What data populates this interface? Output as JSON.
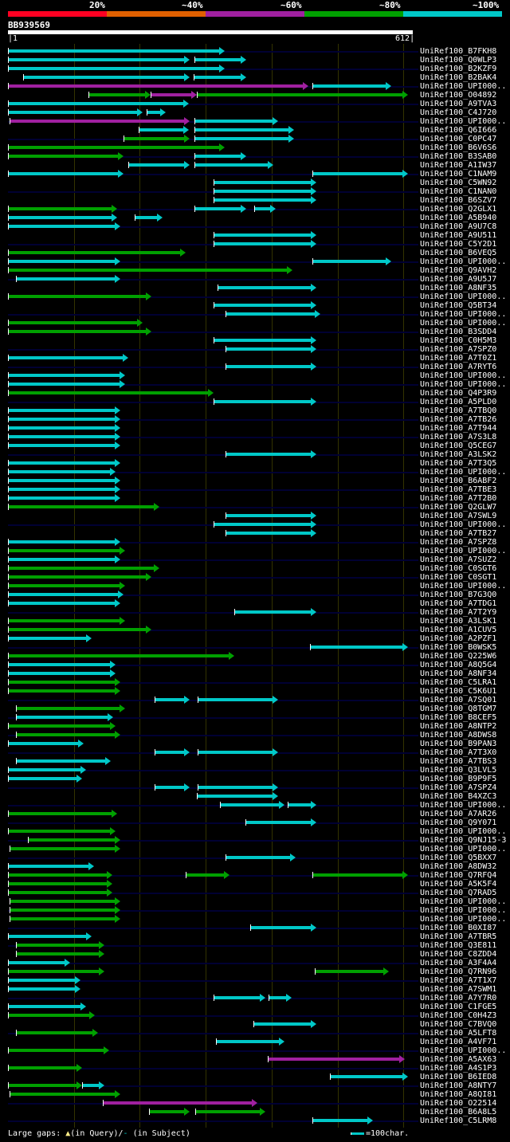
{
  "colors": {
    "c": "#00c8c8",
    "g": "#00a000",
    "p": "#a020a0",
    "red": "#ff0022",
    "orange": "#e06000",
    "grid": "#333300"
  },
  "header": {
    "pct_labels": [
      "20%",
      "~40%",
      "~60%",
      "~80%",
      "~100%"
    ],
    "query_id": "BB939569",
    "scale_start": "1",
    "scale_end": "612"
  },
  "query_length": 612,
  "hits": [
    {
      "label": "UniRef100_B7FKH8",
      "segs": [
        [
          0,
          329,
          "c"
        ]
      ]
    },
    {
      "label": "UniRef100_Q0WLP3",
      "segs": [
        [
          0,
          276,
          "c"
        ],
        [
          283,
          362,
          "c"
        ]
      ]
    },
    {
      "label": "UniRef100_B2KZF9",
      "segs": [
        [
          0,
          329,
          "c"
        ]
      ]
    },
    {
      "label": "UniRef100_B2BAK4",
      "segs": [
        [
          23,
          276,
          "c"
        ],
        [
          282,
          362,
          "c"
        ]
      ]
    },
    {
      "label": "UniRef100_UPI000..",
      "segs": [
        [
          0,
          456,
          "p"
        ],
        [
          462,
          582,
          "c"
        ]
      ]
    },
    {
      "label": "UniRef100_O04892",
      "segs": [
        [
          122,
          216,
          "g"
        ],
        [
          216,
          286,
          "p"
        ],
        [
          286,
          607,
          "g"
        ]
      ]
    },
    {
      "label": "UniRef100_A9TVA3",
      "segs": [
        [
          0,
          274,
          "c"
        ]
      ]
    },
    {
      "label": "UniRef100_C4J720",
      "segs": [
        [
          0,
          204,
          "c"
        ],
        [
          210,
          240,
          "c"
        ]
      ]
    },
    {
      "label": "UniRef100_UPI000..",
      "segs": [
        [
          2,
          276,
          "p"
        ],
        [
          283,
          410,
          "c"
        ]
      ]
    },
    {
      "label": "UniRef100_Q6I666",
      "segs": [
        [
          198,
          274,
          "c"
        ],
        [
          283,
          434,
          "c"
        ]
      ]
    },
    {
      "label": "UniRef100_C0PC47",
      "segs": [
        [
          175,
          276,
          "g"
        ],
        [
          283,
          434,
          "c"
        ]
      ]
    },
    {
      "label": "UniRef100_B6V6S6",
      "segs": [
        [
          0,
          329,
          "g"
        ]
      ]
    },
    {
      "label": "UniRef100_B3SAB0",
      "segs": [
        [
          0,
          175,
          "g"
        ],
        [
          283,
          362,
          "c"
        ]
      ]
    },
    {
      "label": "UniRef100_A1IW37",
      "segs": [
        [
          182,
          276,
          "c"
        ],
        [
          283,
          403,
          "c"
        ]
      ]
    },
    {
      "label": "UniRef100_C1NAM9",
      "segs": [
        [
          0,
          175,
          "c"
        ],
        [
          462,
          607,
          "c"
        ]
      ]
    },
    {
      "label": "UniRef100_C5WN92",
      "segs": [
        [
          312,
          468,
          "c"
        ]
      ]
    },
    {
      "label": "UniRef100_C1NAN0",
      "segs": [
        [
          312,
          468,
          "c"
        ]
      ]
    },
    {
      "label": "UniRef100_B6SZV7",
      "segs": [
        [
          312,
          468,
          "c"
        ]
      ]
    },
    {
      "label": "UniRef100_Q2GLX1",
      "segs": [
        [
          0,
          166,
          "g"
        ],
        [
          283,
          362,
          "c"
        ],
        [
          374,
          406,
          "c"
        ]
      ]
    },
    {
      "label": "UniRef100_A5B940",
      "segs": [
        [
          0,
          166,
          "c"
        ],
        [
          192,
          235,
          "c"
        ]
      ]
    },
    {
      "label": "UniRef100_A9U7C8",
      "segs": [
        [
          0,
          170,
          "c"
        ]
      ]
    },
    {
      "label": "UniRef100_A9U511",
      "segs": [
        [
          312,
          468,
          "c"
        ]
      ]
    },
    {
      "label": "UniRef100_C5Y2D1",
      "segs": [
        [
          312,
          468,
          "c"
        ]
      ]
    },
    {
      "label": "UniRef100_B6VEQ5",
      "segs": [
        [
          0,
          270,
          "g"
        ]
      ]
    },
    {
      "label": "UniRef100_UPI000..",
      "segs": [
        [
          0,
          170,
          "c"
        ],
        [
          462,
          582,
          "c"
        ]
      ]
    },
    {
      "label": "UniRef100_Q9AVH2",
      "segs": [
        [
          0,
          432,
          "g"
        ]
      ]
    },
    {
      "label": "UniRef100_A9U5J7",
      "segs": [
        [
          12,
          170,
          "c"
        ]
      ]
    },
    {
      "label": "UniRef100_A8NF35",
      "segs": [
        [
          318,
          468,
          "c"
        ]
      ]
    },
    {
      "label": "UniRef100_UPI000..",
      "segs": [
        [
          0,
          218,
          "g"
        ]
      ]
    },
    {
      "label": "UniRef100_Q5BT34",
      "segs": [
        [
          312,
          468,
          "c"
        ]
      ]
    },
    {
      "label": "UniRef100_UPI000..",
      "segs": [
        [
          330,
          474,
          "c"
        ]
      ]
    },
    {
      "label": "UniRef100_UPI000..",
      "segs": [
        [
          0,
          204,
          "g"
        ]
      ]
    },
    {
      "label": "UniRef100_B3SDD4",
      "segs": [
        [
          0,
          218,
          "g"
        ]
      ]
    },
    {
      "label": "UniRef100_C0H5M3",
      "segs": [
        [
          312,
          468,
          "c"
        ]
      ]
    },
    {
      "label": "UniRef100_A7SPZ0",
      "segs": [
        [
          330,
          468,
          "c"
        ]
      ]
    },
    {
      "label": "UniRef100_A7T0Z1",
      "segs": [
        [
          0,
          182,
          "c"
        ]
      ]
    },
    {
      "label": "UniRef100_A7RYT6",
      "segs": [
        [
          330,
          468,
          "c"
        ]
      ]
    },
    {
      "label": "UniRef100_UPI000..",
      "segs": [
        [
          0,
          178,
          "c"
        ]
      ]
    },
    {
      "label": "UniRef100_UPI000..",
      "segs": [
        [
          0,
          178,
          "c"
        ]
      ]
    },
    {
      "label": "UniRef100_Q4P3R9",
      "segs": [
        [
          0,
          312,
          "g"
        ]
      ]
    },
    {
      "label": "UniRef100_A5PLD0",
      "segs": [
        [
          312,
          468,
          "c"
        ]
      ]
    },
    {
      "label": "UniRef100_A7TBQ0",
      "segs": [
        [
          0,
          170,
          "c"
        ]
      ]
    },
    {
      "label": "UniRef100_A7TB26",
      "segs": [
        [
          0,
          170,
          "c"
        ]
      ]
    },
    {
      "label": "UniRef100_A7T944",
      "segs": [
        [
          0,
          170,
          "c"
        ]
      ]
    },
    {
      "label": "UniRef100_A7S3L8",
      "segs": [
        [
          0,
          170,
          "c"
        ]
      ]
    },
    {
      "label": "UniRef100_Q5CEG7",
      "segs": [
        [
          0,
          170,
          "c"
        ]
      ]
    },
    {
      "label": "UniRef100_A3LSK2",
      "segs": [
        [
          330,
          468,
          "c"
        ]
      ]
    },
    {
      "label": "UniRef100_A7T3Q5",
      "segs": [
        [
          0,
          170,
          "c"
        ]
      ]
    },
    {
      "label": "UniRef100_UPI000..",
      "segs": [
        [
          0,
          163,
          "c"
        ]
      ]
    },
    {
      "label": "UniRef100_B6ABF2",
      "segs": [
        [
          0,
          170,
          "c"
        ]
      ]
    },
    {
      "label": "UniRef100_A7TBE3",
      "segs": [
        [
          0,
          170,
          "c"
        ]
      ]
    },
    {
      "label": "UniRef100_A7T2B0",
      "segs": [
        [
          0,
          170,
          "c"
        ]
      ]
    },
    {
      "label": "UniRef100_Q2GLW7",
      "segs": [
        [
          0,
          230,
          "g"
        ]
      ]
    },
    {
      "label": "UniRef100_A7SWL9",
      "segs": [
        [
          330,
          468,
          "c"
        ]
      ]
    },
    {
      "label": "UniRef100_UPI000..",
      "segs": [
        [
          312,
          468,
          "c"
        ]
      ]
    },
    {
      "label": "UniRef100_A7TB27",
      "segs": [
        [
          330,
          468,
          "c"
        ]
      ]
    },
    {
      "label": "UniRef100_A7SPZ8",
      "segs": [
        [
          0,
          170,
          "c"
        ]
      ]
    },
    {
      "label": "UniRef100_UPI000..",
      "segs": [
        [
          0,
          178,
          "g"
        ]
      ]
    },
    {
      "label": "UniRef100_A7SUZ2",
      "segs": [
        [
          0,
          170,
          "c"
        ]
      ]
    },
    {
      "label": "UniRef100_C0SGT6",
      "segs": [
        [
          0,
          230,
          "g"
        ]
      ]
    },
    {
      "label": "UniRef100_C0SGT1",
      "segs": [
        [
          0,
          218,
          "g"
        ]
      ]
    },
    {
      "label": "UniRef100_UPI000..",
      "segs": [
        [
          0,
          178,
          "g"
        ]
      ]
    },
    {
      "label": "UniRef100_B7G3Q0",
      "segs": [
        [
          0,
          175,
          "c"
        ]
      ]
    },
    {
      "label": "UniRef100_A7TDG1",
      "segs": [
        [
          0,
          170,
          "c"
        ]
      ]
    },
    {
      "label": "UniRef100_A7T2Y9",
      "segs": [
        [
          344,
          468,
          "c"
        ]
      ]
    },
    {
      "label": "UniRef100_A3LSK1",
      "segs": [
        [
          0,
          178,
          "g"
        ]
      ]
    },
    {
      "label": "UniRef100_A1CUV5",
      "segs": [
        [
          0,
          218,
          "g"
        ]
      ]
    },
    {
      "label": "UniRef100_A2PZF1",
      "segs": [
        [
          0,
          127,
          "c"
        ]
      ]
    },
    {
      "label": "UniRef100_B0WSK5",
      "segs": [
        [
          458,
          607,
          "c"
        ]
      ]
    },
    {
      "label": "UniRef100_Q225W6",
      "segs": [
        [
          0,
          344,
          "g"
        ]
      ]
    },
    {
      "label": "UniRef100_A8Q5G4",
      "segs": [
        [
          0,
          163,
          "c"
        ]
      ]
    },
    {
      "label": "UniRef100_A8NF34",
      "segs": [
        [
          0,
          163,
          "c"
        ]
      ]
    },
    {
      "label": "UniRef100_C5LRA1",
      "segs": [
        [
          0,
          170,
          "g"
        ]
      ]
    },
    {
      "label": "UniRef100_C5K6U1",
      "segs": [
        [
          0,
          170,
          "g"
        ]
      ]
    },
    {
      "label": "UniRef100_A7SQ01",
      "segs": [
        [
          223,
          276,
          "c"
        ],
        [
          288,
          410,
          "c"
        ]
      ]
    },
    {
      "label": "UniRef100_Q8TGM7",
      "segs": [
        [
          12,
          178,
          "g"
        ]
      ]
    },
    {
      "label": "UniRef100_B8CEF5",
      "segs": [
        [
          12,
          160,
          "c"
        ]
      ]
    },
    {
      "label": "UniRef100_A8NTP2",
      "segs": [
        [
          0,
          163,
          "g"
        ]
      ]
    },
    {
      "label": "UniRef100_A8DWS8",
      "segs": [
        [
          12,
          170,
          "g"
        ]
      ]
    },
    {
      "label": "UniRef100_B9PAN3",
      "segs": [
        [
          0,
          115,
          "c"
        ]
      ]
    },
    {
      "label": "UniRef100_A7T3X0",
      "segs": [
        [
          223,
          276,
          "c"
        ],
        [
          288,
          410,
          "c"
        ]
      ]
    },
    {
      "label": "UniRef100_A7TBS3",
      "segs": [
        [
          12,
          156,
          "c"
        ]
      ]
    },
    {
      "label": "UniRef100_Q3LVL5",
      "segs": [
        [
          0,
          118,
          "c"
        ]
      ]
    },
    {
      "label": "UniRef100_B9P9F5",
      "segs": [
        [
          0,
          113,
          "c"
        ]
      ]
    },
    {
      "label": "UniRef100_A7SPZ4",
      "segs": [
        [
          223,
          276,
          "c"
        ],
        [
          288,
          410,
          "c"
        ]
      ]
    },
    {
      "label": "UniRef100_B4XZC3",
      "segs": [
        [
          286,
          410,
          "c"
        ]
      ]
    },
    {
      "label": "UniRef100_UPI000..",
      "segs": [
        [
          322,
          420,
          "c"
        ],
        [
          425,
          468,
          "c"
        ]
      ]
    },
    {
      "label": "UniRef100_A7AR26",
      "segs": [
        [
          0,
          166,
          "g"
        ]
      ]
    },
    {
      "label": "UniRef100_Q9Y071",
      "segs": [
        [
          360,
          468,
          "c"
        ]
      ]
    },
    {
      "label": "UniRef100_UPI000..",
      "segs": [
        [
          0,
          163,
          "g"
        ]
      ]
    },
    {
      "label": "UniRef100_Q9NJ15-3",
      "segs": [
        [
          30,
          170,
          "g"
        ]
      ]
    },
    {
      "label": "UniRef100_UPI000..",
      "segs": [
        [
          2,
          170,
          "g"
        ]
      ]
    },
    {
      "label": "UniRef100_Q5BXX7",
      "segs": [
        [
          330,
          437,
          "c"
        ]
      ]
    },
    {
      "label": "UniRef100_A8DW32",
      "segs": [
        [
          0,
          130,
          "c"
        ]
      ]
    },
    {
      "label": "UniRef100_Q7RFQ4",
      "segs": [
        [
          0,
          158,
          "g"
        ],
        [
          270,
          336,
          "g"
        ],
        [
          462,
          607,
          "g"
        ]
      ]
    },
    {
      "label": "UniRef100_A5K5F4",
      "segs": [
        [
          0,
          158,
          "g"
        ]
      ]
    },
    {
      "label": "UniRef100_Q7RAD5",
      "segs": [
        [
          0,
          158,
          "g"
        ]
      ]
    },
    {
      "label": "UniRef100_UPI000..",
      "segs": [
        [
          2,
          170,
          "g"
        ]
      ]
    },
    {
      "label": "UniRef100_UPI000..",
      "segs": [
        [
          2,
          170,
          "g"
        ]
      ]
    },
    {
      "label": "UniRef100_UPI000..",
      "segs": [
        [
          2,
          170,
          "g"
        ]
      ]
    },
    {
      "label": "UniRef100_B0XI87",
      "segs": [
        [
          368,
          468,
          "c"
        ]
      ]
    },
    {
      "label": "UniRef100_A7TBR5",
      "segs": [
        [
          0,
          127,
          "c"
        ]
      ]
    },
    {
      "label": "UniRef100_Q3E811",
      "segs": [
        [
          12,
          146,
          "g"
        ]
      ]
    },
    {
      "label": "UniRef100_C8ZDD4",
      "segs": [
        [
          12,
          146,
          "g"
        ]
      ]
    },
    {
      "label": "UniRef100_A3F4A4",
      "segs": [
        [
          0,
          94,
          "c"
        ]
      ]
    },
    {
      "label": "UniRef100_Q7RN96",
      "segs": [
        [
          0,
          146,
          "g"
        ],
        [
          466,
          578,
          "g"
        ]
      ]
    },
    {
      "label": "UniRef100_A7T1X7",
      "segs": [
        [
          0,
          110,
          "c"
        ]
      ]
    },
    {
      "label": "UniRef100_A7SWM1",
      "segs": [
        [
          0,
          110,
          "c"
        ]
      ]
    },
    {
      "label": "UniRef100_A7Y7R0",
      "segs": [
        [
          312,
          391,
          "c"
        ],
        [
          396,
          430,
          "c"
        ]
      ]
    },
    {
      "label": "UniRef100_C1FGE5",
      "segs": [
        [
          0,
          118,
          "c"
        ]
      ]
    },
    {
      "label": "UniRef100_C0H4Z3",
      "segs": [
        [
          0,
          132,
          "g"
        ]
      ]
    },
    {
      "label": "UniRef100_C7BVQ0",
      "segs": [
        [
          372,
          468,
          "c"
        ]
      ]
    },
    {
      "label": "UniRef100_A5LFT8",
      "segs": [
        [
          12,
          137,
          "g"
        ]
      ]
    },
    {
      "label": "UniRef100_A4VF71",
      "segs": [
        [
          316,
          420,
          "c"
        ]
      ]
    },
    {
      "label": "UniRef100_UPI000..",
      "segs": [
        [
          0,
          154,
          "g"
        ]
      ]
    },
    {
      "label": "UniRef100_A5AX63",
      "segs": [
        [
          394,
          602,
          "p"
        ]
      ]
    },
    {
      "label": "UniRef100_A4S1P3",
      "segs": [
        [
          0,
          113,
          "g"
        ]
      ]
    },
    {
      "label": "UniRef100_B6IED8",
      "segs": [
        [
          488,
          607,
          "c"
        ]
      ]
    },
    {
      "label": "UniRef100_A8NTY7",
      "segs": [
        [
          0,
          113,
          "g"
        ],
        [
          113,
          146,
          "c"
        ]
      ]
    },
    {
      "label": "UniRef100_A8QI81",
      "segs": [
        [
          2,
          170,
          "g"
        ]
      ]
    },
    {
      "label": "UniRef100_O22514",
      "segs": [
        [
          144,
          378,
          "p"
        ]
      ]
    },
    {
      "label": "UniRef100_B6A8L5",
      "segs": [
        [
          214,
          276,
          "g"
        ],
        [
          284,
          391,
          "g"
        ]
      ]
    },
    {
      "label": "UniRef100_C5LRM8",
      "segs": [
        [
          462,
          554,
          "c"
        ]
      ]
    }
  ],
  "footer": {
    "gaps_label": "Large gaps:",
    "query_gap_icon": "triangle-marker",
    "query_text": "(in Query)/",
    "subject_gap_icon": "dash-marker",
    "subject_text": "(in Subject)",
    "scale_legend": "=100char."
  }
}
